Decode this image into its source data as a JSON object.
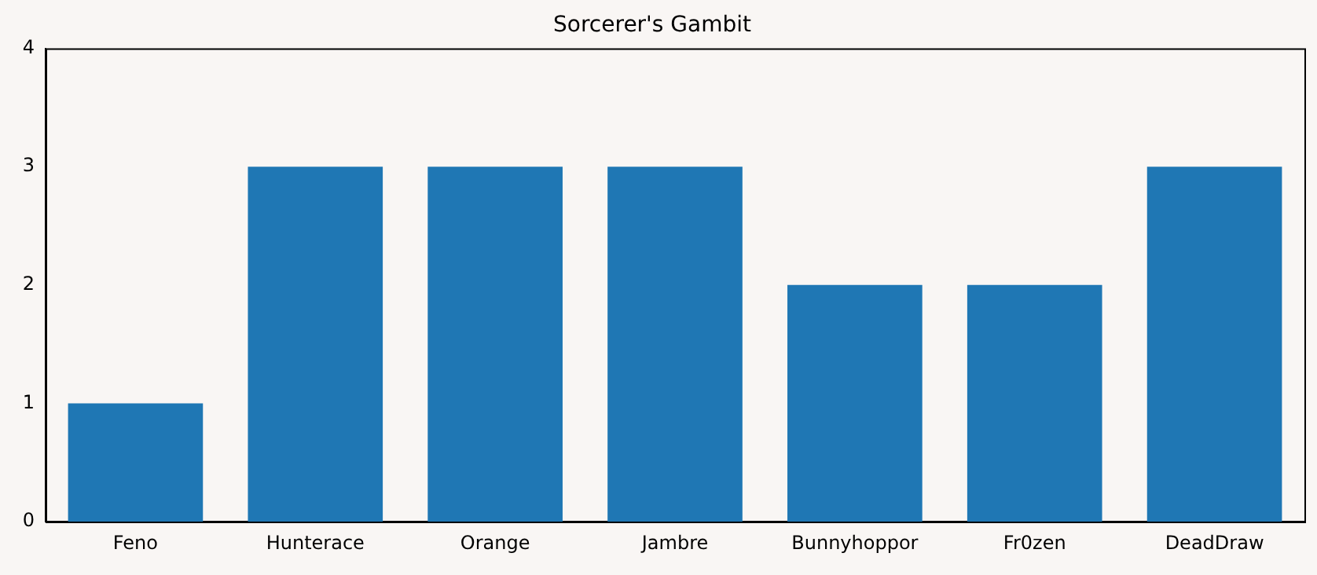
{
  "chart_data": {
    "type": "bar",
    "title": "Sorcerer's Gambit",
    "categories": [
      "Feno",
      "Hunterace",
      "Orange",
      "Jambre",
      "Bunnyhoppor",
      "Fr0zen",
      "DeadDraw"
    ],
    "values": [
      1,
      3,
      3,
      3,
      2,
      2,
      3
    ],
    "color": "#1f77b4",
    "ylim": [
      0,
      4
    ],
    "yticks": [
      0,
      1,
      2,
      3,
      4
    ],
    "grid": false,
    "legend": false
  }
}
